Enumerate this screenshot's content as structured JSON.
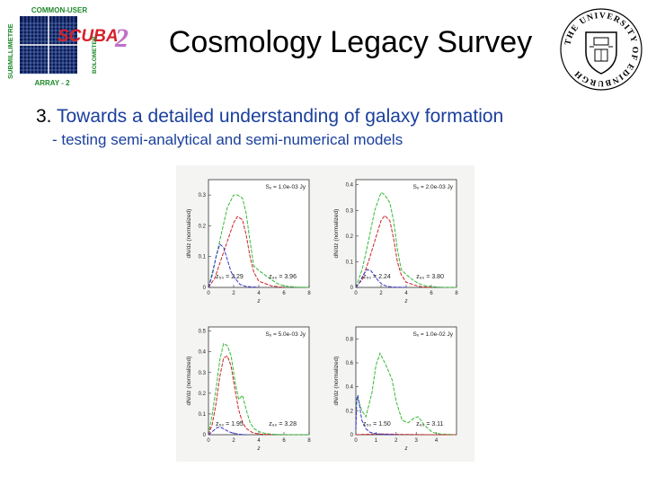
{
  "logo_left": {
    "top_text": "COMMON-USER",
    "side_left_text": "SUBMILLIMETRE",
    "side_right_text": "BOLOMETER",
    "main_text": "SCUBA",
    "main_digit": "2",
    "bottom_text": "ARRAY - 2"
  },
  "logo_right": {
    "text": "THE UNIVERSITY OF EDINBURGH"
  },
  "title": "Cosmology Legacy Survey",
  "heading": {
    "number": "3.",
    "text": "Towards a detailed understanding of galaxy formation"
  },
  "subheading": "- testing semi-analytical and semi-numerical models",
  "colors": {
    "green": "#33bb33",
    "red": "#cc2222",
    "blue": "#3333cc",
    "heading": "#1a3f9c"
  },
  "chart_data": [
    {
      "type": "line",
      "panel_label": "Sₒ = 1.0e-03 Jy",
      "ylabel": "dN/dz (normalized)",
      "xlabel": "z",
      "xlim": [
        0,
        8
      ],
      "ylim": [
        0,
        0.35
      ],
      "xticks": [
        0,
        2,
        4,
        6,
        8
      ],
      "yticks": [
        0,
        0.1,
        0.2,
        0.3
      ],
      "ytick_labels": [
        "0",
        "0.1",
        "0.2",
        "0.3"
      ],
      "annotation": {
        "z50": "2.29",
        "z90": "3.96"
      },
      "series": [
        {
          "color": "green",
          "x": [
            0,
            0.5,
            1,
            1.5,
            2,
            2.3,
            2.7,
            3,
            3.3,
            3.6,
            4,
            4.5,
            5,
            5.5,
            6,
            7,
            8
          ],
          "y": [
            0,
            0.08,
            0.17,
            0.26,
            0.3,
            0.3,
            0.29,
            0.24,
            0.15,
            0.07,
            0.055,
            0.04,
            0.025,
            0.012,
            0.005,
            0.001,
            0
          ]
        },
        {
          "color": "red",
          "x": [
            0,
            0.5,
            1,
            1.5,
            2,
            2.3,
            2.7,
            3,
            3.3,
            3.6,
            4,
            5,
            6
          ],
          "y": [
            0,
            0.03,
            0.09,
            0.15,
            0.21,
            0.23,
            0.22,
            0.17,
            0.1,
            0.05,
            0.02,
            0.005,
            0
          ]
        },
        {
          "color": "blue",
          "x": [
            0,
            0.3,
            0.6,
            0.9,
            1.2,
            1.5,
            1.8,
            2.1,
            2.5,
            3,
            4
          ],
          "y": [
            0,
            0.04,
            0.1,
            0.14,
            0.13,
            0.09,
            0.05,
            0.03,
            0.01,
            0.003,
            0
          ]
        }
      ]
    },
    {
      "type": "line",
      "panel_label": "Sₒ = 2.0e-03 Jy",
      "ylabel": "dN/dz (normalized)",
      "xlabel": "z",
      "xlim": [
        0,
        8
      ],
      "ylim": [
        0,
        0.42
      ],
      "xticks": [
        0,
        2,
        4,
        6,
        8
      ],
      "yticks": [
        0,
        0.1,
        0.2,
        0.3,
        0.4
      ],
      "ytick_labels": [
        "0",
        "0.1",
        "0.2",
        "0.3",
        "0.4"
      ],
      "annotation": {
        "z50": "2.24",
        "z90": "3.80"
      },
      "series": [
        {
          "color": "green",
          "x": [
            0,
            0.5,
            1,
            1.5,
            2,
            2.3,
            2.7,
            3,
            3.3,
            3.6,
            4,
            4.5,
            5,
            5.5,
            6,
            7,
            8
          ],
          "y": [
            0,
            0.07,
            0.18,
            0.3,
            0.37,
            0.36,
            0.33,
            0.26,
            0.15,
            0.07,
            0.05,
            0.03,
            0.015,
            0.007,
            0.003,
            0,
            0
          ]
        },
        {
          "color": "red",
          "x": [
            0,
            0.5,
            1,
            1.5,
            2,
            2.3,
            2.7,
            3,
            3.3,
            3.6,
            4,
            5,
            6
          ],
          "y": [
            0,
            0.03,
            0.1,
            0.18,
            0.26,
            0.28,
            0.26,
            0.19,
            0.1,
            0.05,
            0.02,
            0.004,
            0
          ]
        },
        {
          "color": "blue",
          "x": [
            0,
            0.3,
            0.6,
            0.9,
            1.2,
            1.5,
            1.8,
            2.1,
            2.5,
            3,
            4
          ],
          "y": [
            0,
            0.02,
            0.05,
            0.07,
            0.065,
            0.045,
            0.025,
            0.012,
            0.004,
            0.001,
            0
          ]
        }
      ]
    },
    {
      "type": "line",
      "panel_label": "Sₒ = 5.0e-03 Jy",
      "ylabel": "dN/dz (normalized)",
      "xlabel": "z",
      "xlim": [
        0,
        8
      ],
      "ylim": [
        0,
        0.52
      ],
      "xticks": [
        0,
        2,
        4,
        6,
        8
      ],
      "yticks": [
        0,
        0.1,
        0.2,
        0.3,
        0.4,
        0.5
      ],
      "ytick_labels": [
        "0",
        "0.1",
        "0.2",
        "0.3",
        "0.4",
        "0.5"
      ],
      "annotation": {
        "z50": "1.95",
        "z90": "3.28"
      },
      "series": [
        {
          "color": "green",
          "x": [
            0,
            0.3,
            0.6,
            0.9,
            1.2,
            1.5,
            1.8,
            2.1,
            2.4,
            2.7,
            3,
            3.3,
            3.6,
            4,
            4.5,
            5,
            6,
            8
          ],
          "y": [
            0,
            0.1,
            0.22,
            0.36,
            0.44,
            0.43,
            0.38,
            0.26,
            0.17,
            0.19,
            0.12,
            0.06,
            0.03,
            0.015,
            0.006,
            0.002,
            0,
            0
          ]
        },
        {
          "color": "red",
          "x": [
            0,
            0.3,
            0.6,
            0.9,
            1.2,
            1.5,
            1.8,
            2.1,
            2.4,
            2.7,
            3,
            3.5,
            4,
            5
          ],
          "y": [
            0,
            0.05,
            0.15,
            0.28,
            0.37,
            0.38,
            0.33,
            0.22,
            0.12,
            0.06,
            0.03,
            0.01,
            0.003,
            0
          ]
        },
        {
          "color": "blue",
          "x": [
            0,
            0.2,
            0.4,
            0.7,
            1,
            1.3,
            1.6,
            2,
            2.5,
            3
          ],
          "y": [
            0,
            0.01,
            0.02,
            0.035,
            0.035,
            0.025,
            0.015,
            0.006,
            0.002,
            0
          ]
        }
      ]
    },
    {
      "type": "line",
      "panel_label": "Sₒ = 1.0e-02 Jy",
      "ylabel": "dN/dz (normalized)",
      "xlabel": "z",
      "xlim": [
        0,
        5
      ],
      "ylim": [
        0,
        0.9
      ],
      "xticks": [
        0,
        1,
        2,
        3,
        4
      ],
      "yticks": [
        0,
        0.2,
        0.4,
        0.6,
        0.8
      ],
      "ytick_labels": [
        "0",
        "0.2",
        "0.4",
        "0.6",
        "0.8"
      ],
      "annotation": {
        "z50": "1.50",
        "z90": "3.11"
      },
      "series": [
        {
          "color": "green",
          "x": [
            0,
            0.1,
            0.3,
            0.5,
            0.8,
            1,
            1.2,
            1.5,
            1.8,
            2,
            2.3,
            2.6,
            2.9,
            3.1,
            3.4,
            3.8,
            4.2,
            5
          ],
          "y": [
            0.25,
            0.3,
            0.2,
            0.15,
            0.35,
            0.58,
            0.68,
            0.58,
            0.46,
            0.28,
            0.12,
            0.1,
            0.14,
            0.15,
            0.08,
            0.02,
            0.005,
            0
          ]
        },
        {
          "color": "red",
          "x": [
            0,
            0.5,
            1,
            1.5,
            2,
            3,
            4,
            5
          ],
          "y": [
            0,
            0.003,
            0.006,
            0.006,
            0.003,
            0.001,
            0,
            0
          ]
        },
        {
          "color": "blue",
          "x": [
            0,
            0.05,
            0.1,
            0.2,
            0.3,
            0.5,
            0.7,
            1,
            1.5,
            2
          ],
          "y": [
            0.04,
            0.3,
            0.33,
            0.22,
            0.12,
            0.05,
            0.02,
            0.008,
            0.002,
            0
          ]
        }
      ]
    }
  ]
}
